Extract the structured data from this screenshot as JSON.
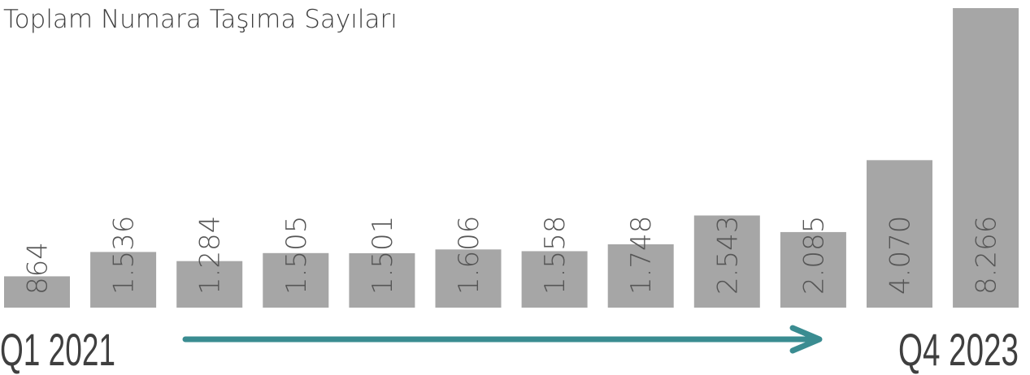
{
  "chart_data": {
    "type": "bar",
    "title": "Toplam Numara Taşıma Sayıları",
    "categories": [
      "Q1 2021",
      null,
      null,
      null,
      null,
      null,
      null,
      null,
      null,
      null,
      null,
      "Q4 2023"
    ],
    "values": [
      864,
      1536,
      1284,
      1505,
      1501,
      1606,
      1558,
      1748,
      2543,
      2085,
      4070,
      8266
    ],
    "value_labels": [
      "864",
      "1.536",
      "1.284",
      "1.505",
      "1.501",
      "1.606",
      "1.558",
      "1.748",
      "2.543",
      "2.085",
      "4.070",
      "8.266"
    ],
    "color": "#a6a6a6"
  }
}
